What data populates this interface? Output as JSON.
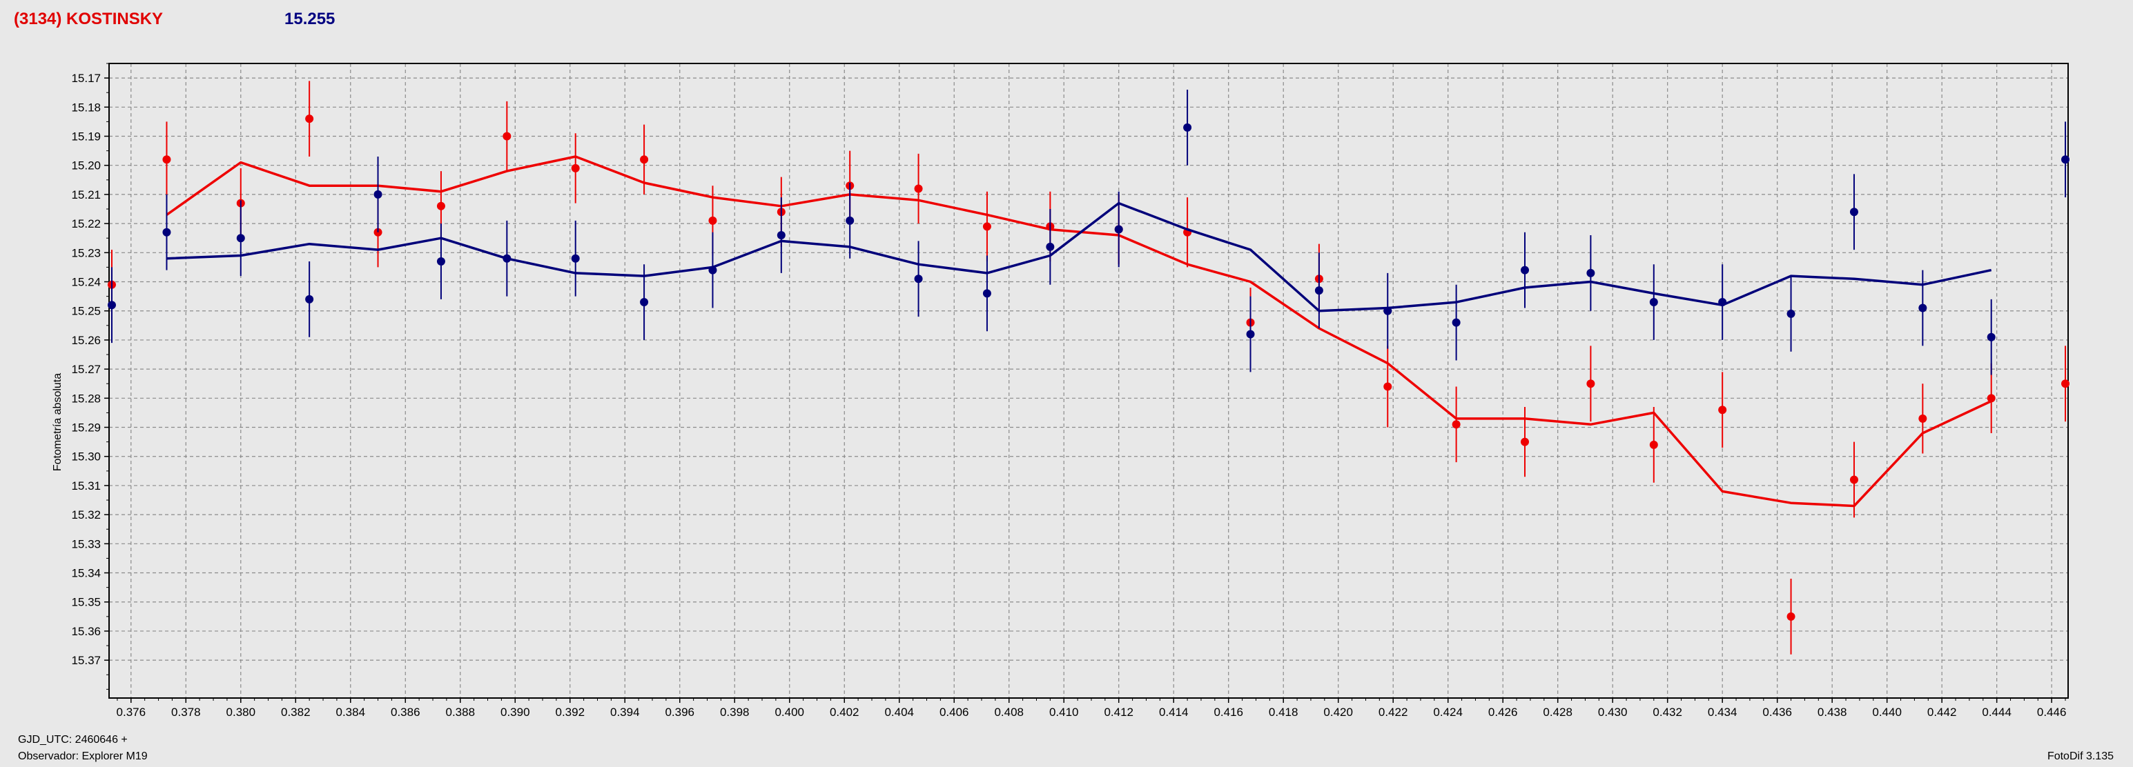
{
  "header": {
    "object": "(3134) KOSTINSKY",
    "magnitude": "15.255"
  },
  "footer": {
    "gjd": "GJD_UTC: 2460646 +",
    "observer": "Observador: Explorer M19",
    "version": "FotoDif 3.135"
  },
  "colors": {
    "red_series": "#ee0000",
    "blue_series": "#00007a",
    "grid": "#8a8a8a",
    "plot_background": "#e8e8e8"
  },
  "chart_data": {
    "type": "scatter",
    "title": "",
    "xlabel": "",
    "ylabel": "Fotometría absoluta",
    "xlim": [
      0.3752,
      0.4466
    ],
    "ylim": [
      15.165,
      15.383
    ],
    "y_inverted": true,
    "grid": true,
    "x_ticks": [
      "0.376",
      "0.378",
      "0.380",
      "0.382",
      "0.384",
      "0.386",
      "0.388",
      "0.390",
      "0.392",
      "0.394",
      "0.396",
      "0.398",
      "0.400",
      "0.402",
      "0.404",
      "0.406",
      "0.408",
      "0.410",
      "0.412",
      "0.414",
      "0.416",
      "0.418",
      "0.420",
      "0.422",
      "0.424",
      "0.426",
      "0.428",
      "0.430",
      "0.432",
      "0.434",
      "0.436",
      "0.438",
      "0.440",
      "0.442",
      "0.444",
      "0.446"
    ],
    "y_ticks": [
      "15.17",
      "15.18",
      "15.19",
      "15.20",
      "15.21",
      "15.22",
      "15.23",
      "15.24",
      "15.25",
      "15.26",
      "15.27",
      "15.28",
      "15.29",
      "15.30",
      "15.31",
      "15.32",
      "15.33",
      "15.34",
      "15.35",
      "15.36",
      "15.37"
    ],
    "series": [
      {
        "color_key": "red_series",
        "points": [
          {
            "x": 0.3753,
            "y": 15.241,
            "err": 0.012
          },
          {
            "x": 0.3773,
            "y": 15.198,
            "err": 0.013
          },
          {
            "x": 0.38,
            "y": 15.213,
            "err": 0.012
          },
          {
            "x": 0.3825,
            "y": 15.184,
            "err": 0.013
          },
          {
            "x": 0.385,
            "y": 15.223,
            "err": 0.012
          },
          {
            "x": 0.3873,
            "y": 15.214,
            "err": 0.012
          },
          {
            "x": 0.3897,
            "y": 15.19,
            "err": 0.012
          },
          {
            "x": 0.3922,
            "y": 15.201,
            "err": 0.012
          },
          {
            "x": 0.3947,
            "y": 15.198,
            "err": 0.012
          },
          {
            "x": 0.3972,
            "y": 15.219,
            "err": 0.012
          },
          {
            "x": 0.3997,
            "y": 15.216,
            "err": 0.012
          },
          {
            "x": 0.4022,
            "y": 15.207,
            "err": 0.012
          },
          {
            "x": 0.4047,
            "y": 15.208,
            "err": 0.012
          },
          {
            "x": 0.4072,
            "y": 15.221,
            "err": 0.012
          },
          {
            "x": 0.4095,
            "y": 15.221,
            "err": 0.012
          },
          {
            "x": 0.412,
            "y": 15.222,
            "err": 0.012
          },
          {
            "x": 0.4145,
            "y": 15.223,
            "err": 0.012
          },
          {
            "x": 0.4168,
            "y": 15.254,
            "err": 0.012
          },
          {
            "x": 0.4193,
            "y": 15.239,
            "err": 0.012
          },
          {
            "x": 0.4218,
            "y": 15.276,
            "err": 0.014
          },
          {
            "x": 0.4243,
            "y": 15.289,
            "err": 0.013
          },
          {
            "x": 0.4268,
            "y": 15.295,
            "err": 0.012
          },
          {
            "x": 0.4292,
            "y": 15.275,
            "err": 0.013
          },
          {
            "x": 0.4315,
            "y": 15.296,
            "err": 0.013
          },
          {
            "x": 0.434,
            "y": 15.284,
            "err": 0.013
          },
          {
            "x": 0.4365,
            "y": 15.355,
            "err": 0.013
          },
          {
            "x": 0.4388,
            "y": 15.308,
            "err": 0.013
          },
          {
            "x": 0.4413,
            "y": 15.287,
            "err": 0.012
          },
          {
            "x": 0.4438,
            "y": 15.28,
            "err": 0.012
          },
          {
            "x": 0.4465,
            "y": 15.275,
            "err": 0.013
          }
        ],
        "line": [
          {
            "x": 0.3773,
            "y": 15.217
          },
          {
            "x": 0.38,
            "y": 15.199
          },
          {
            "x": 0.3825,
            "y": 15.207
          },
          {
            "x": 0.385,
            "y": 15.207
          },
          {
            "x": 0.3873,
            "y": 15.209
          },
          {
            "x": 0.3897,
            "y": 15.202
          },
          {
            "x": 0.3922,
            "y": 15.197
          },
          {
            "x": 0.3947,
            "y": 15.206
          },
          {
            "x": 0.3972,
            "y": 15.211
          },
          {
            "x": 0.3997,
            "y": 15.214
          },
          {
            "x": 0.4022,
            "y": 15.21
          },
          {
            "x": 0.4047,
            "y": 15.212
          },
          {
            "x": 0.4072,
            "y": 15.217
          },
          {
            "x": 0.4095,
            "y": 15.222
          },
          {
            "x": 0.412,
            "y": 15.224
          },
          {
            "x": 0.4145,
            "y": 15.234
          },
          {
            "x": 0.4168,
            "y": 15.24
          },
          {
            "x": 0.4193,
            "y": 15.256
          },
          {
            "x": 0.4218,
            "y": 15.268
          },
          {
            "x": 0.4243,
            "y": 15.287
          },
          {
            "x": 0.4268,
            "y": 15.287
          },
          {
            "x": 0.4292,
            "y": 15.289
          },
          {
            "x": 0.4315,
            "y": 15.285
          },
          {
            "x": 0.434,
            "y": 15.312
          },
          {
            "x": 0.4365,
            "y": 15.316
          },
          {
            "x": 0.4388,
            "y": 15.317
          },
          {
            "x": 0.4413,
            "y": 15.292
          },
          {
            "x": 0.4438,
            "y": 15.281
          }
        ]
      },
      {
        "color_key": "blue_series",
        "points": [
          {
            "x": 0.3753,
            "y": 15.248,
            "err": 0.013
          },
          {
            "x": 0.3773,
            "y": 15.223,
            "err": 0.013
          },
          {
            "x": 0.38,
            "y": 15.225,
            "err": 0.013
          },
          {
            "x": 0.3825,
            "y": 15.246,
            "err": 0.013
          },
          {
            "x": 0.385,
            "y": 15.21,
            "err": 0.013
          },
          {
            "x": 0.3873,
            "y": 15.233,
            "err": 0.013
          },
          {
            "x": 0.3897,
            "y": 15.232,
            "err": 0.013
          },
          {
            "x": 0.3922,
            "y": 15.232,
            "err": 0.013
          },
          {
            "x": 0.3947,
            "y": 15.247,
            "err": 0.013
          },
          {
            "x": 0.3972,
            "y": 15.236,
            "err": 0.013
          },
          {
            "x": 0.3997,
            "y": 15.224,
            "err": 0.013
          },
          {
            "x": 0.4022,
            "y": 15.219,
            "err": 0.013
          },
          {
            "x": 0.4047,
            "y": 15.239,
            "err": 0.013
          },
          {
            "x": 0.4072,
            "y": 15.244,
            "err": 0.013
          },
          {
            "x": 0.4095,
            "y": 15.228,
            "err": 0.013
          },
          {
            "x": 0.412,
            "y": 15.222,
            "err": 0.013
          },
          {
            "x": 0.4145,
            "y": 15.187,
            "err": 0.013
          },
          {
            "x": 0.4168,
            "y": 15.258,
            "err": 0.013
          },
          {
            "x": 0.4193,
            "y": 15.243,
            "err": 0.013
          },
          {
            "x": 0.4218,
            "y": 15.25,
            "err": 0.013
          },
          {
            "x": 0.4243,
            "y": 15.254,
            "err": 0.013
          },
          {
            "x": 0.4268,
            "y": 15.236,
            "err": 0.013
          },
          {
            "x": 0.4292,
            "y": 15.237,
            "err": 0.013
          },
          {
            "x": 0.4315,
            "y": 15.247,
            "err": 0.013
          },
          {
            "x": 0.434,
            "y": 15.247,
            "err": 0.013
          },
          {
            "x": 0.4365,
            "y": 15.251,
            "err": 0.013
          },
          {
            "x": 0.4388,
            "y": 15.216,
            "err": 0.013
          },
          {
            "x": 0.4413,
            "y": 15.249,
            "err": 0.013
          },
          {
            "x": 0.4438,
            "y": 15.259,
            "err": 0.013
          },
          {
            "x": 0.4465,
            "y": 15.198,
            "err": 0.013
          }
        ],
        "line": [
          {
            "x": 0.3773,
            "y": 15.232
          },
          {
            "x": 0.38,
            "y": 15.231
          },
          {
            "x": 0.3825,
            "y": 15.227
          },
          {
            "x": 0.385,
            "y": 15.229
          },
          {
            "x": 0.3873,
            "y": 15.225
          },
          {
            "x": 0.3897,
            "y": 15.232
          },
          {
            "x": 0.3922,
            "y": 15.237
          },
          {
            "x": 0.3947,
            "y": 15.238
          },
          {
            "x": 0.3972,
            "y": 15.235
          },
          {
            "x": 0.3997,
            "y": 15.226
          },
          {
            "x": 0.4022,
            "y": 15.228
          },
          {
            "x": 0.4047,
            "y": 15.234
          },
          {
            "x": 0.4072,
            "y": 15.237
          },
          {
            "x": 0.4095,
            "y": 15.231
          },
          {
            "x": 0.412,
            "y": 15.213
          },
          {
            "x": 0.4145,
            "y": 15.222
          },
          {
            "x": 0.4168,
            "y": 15.229
          },
          {
            "x": 0.4193,
            "y": 15.25
          },
          {
            "x": 0.4218,
            "y": 15.249
          },
          {
            "x": 0.4243,
            "y": 15.247
          },
          {
            "x": 0.4268,
            "y": 15.242
          },
          {
            "x": 0.4292,
            "y": 15.24
          },
          {
            "x": 0.4315,
            "y": 15.244
          },
          {
            "x": 0.434,
            "y": 15.248
          },
          {
            "x": 0.4365,
            "y": 15.238
          },
          {
            "x": 0.4388,
            "y": 15.239
          },
          {
            "x": 0.4413,
            "y": 15.241
          },
          {
            "x": 0.4438,
            "y": 15.236
          }
        ]
      }
    ]
  }
}
